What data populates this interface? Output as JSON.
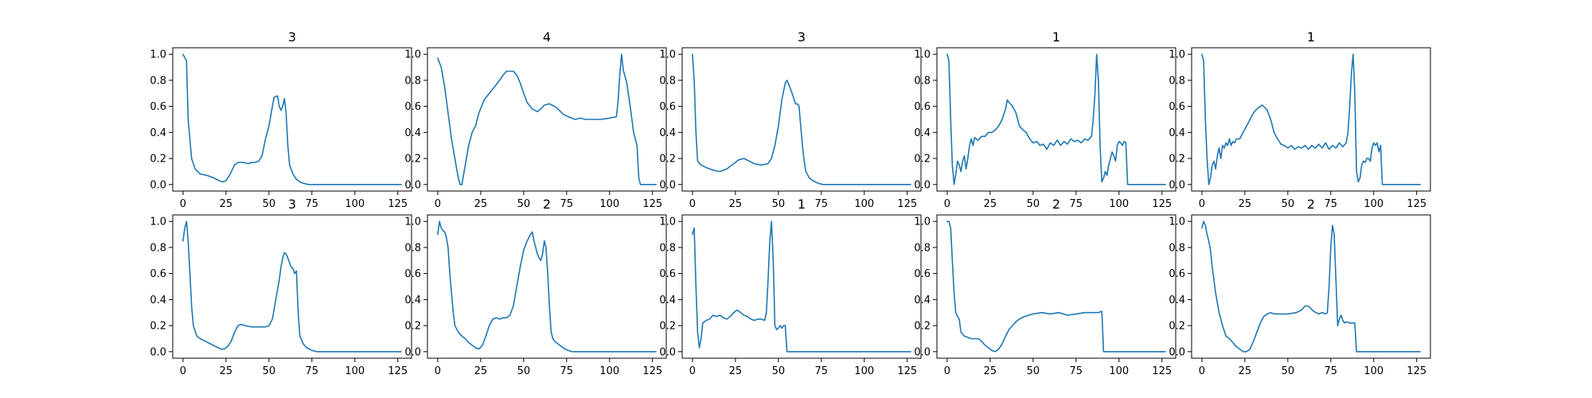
{
  "colors": {
    "series": "#1f77b4"
  },
  "chart_data": [
    {
      "type": "line",
      "title": "3",
      "xlim": [
        -6,
        133
      ],
      "ylim": [
        -0.05,
        1.05
      ],
      "xticks": [
        0,
        25,
        50,
        75,
        100,
        125
      ],
      "yticks": [
        0.0,
        0.2,
        0.4,
        0.6,
        0.8,
        1.0
      ],
      "x": [
        0,
        2,
        3,
        5,
        7,
        10,
        14,
        18,
        21,
        23,
        25,
        27,
        30,
        32,
        35,
        38,
        40,
        42,
        44,
        46,
        48,
        50,
        52,
        53,
        55,
        56,
        57,
        58,
        59,
        60,
        61,
        62,
        64,
        66,
        68,
        70,
        73,
        76,
        80,
        90,
        100,
        110,
        120,
        127
      ],
      "y": [
        1.0,
        0.95,
        0.5,
        0.2,
        0.12,
        0.08,
        0.07,
        0.05,
        0.03,
        0.02,
        0.03,
        0.07,
        0.15,
        0.17,
        0.17,
        0.16,
        0.17,
        0.17,
        0.18,
        0.22,
        0.35,
        0.45,
        0.6,
        0.67,
        0.68,
        0.6,
        0.57,
        0.6,
        0.66,
        0.55,
        0.3,
        0.15,
        0.08,
        0.04,
        0.02,
        0.01,
        0.0,
        0.0,
        0.0,
        0.0,
        0.0,
        0.0,
        0.0,
        0.0
      ]
    },
    {
      "type": "line",
      "title": "4",
      "xlim": [
        -6,
        133
      ],
      "ylim": [
        -0.05,
        1.05
      ],
      "xticks": [
        0,
        25,
        50,
        75,
        100,
        125
      ],
      "yticks": [
        0.0,
        0.2,
        0.4,
        0.6,
        0.8,
        1.0
      ],
      "x": [
        0,
        2,
        4,
        6,
        8,
        10,
        11,
        12,
        13,
        14,
        16,
        18,
        20,
        22,
        24,
        27,
        30,
        33,
        36,
        38,
        40,
        42,
        44,
        46,
        48,
        50,
        52,
        55,
        58,
        60,
        62,
        65,
        68,
        70,
        73,
        76,
        78,
        80,
        83,
        86,
        90,
        95,
        100,
        104,
        105,
        106,
        107,
        108,
        110,
        112,
        114,
        116,
        117,
        118,
        120,
        124,
        127
      ],
      "y": [
        0.97,
        0.9,
        0.75,
        0.55,
        0.35,
        0.2,
        0.12,
        0.05,
        0.0,
        0.0,
        0.15,
        0.3,
        0.4,
        0.45,
        0.55,
        0.65,
        0.7,
        0.75,
        0.8,
        0.84,
        0.87,
        0.87,
        0.87,
        0.84,
        0.78,
        0.7,
        0.63,
        0.58,
        0.56,
        0.58,
        0.61,
        0.62,
        0.6,
        0.58,
        0.54,
        0.52,
        0.51,
        0.5,
        0.51,
        0.5,
        0.5,
        0.5,
        0.51,
        0.52,
        0.65,
        0.85,
        1.0,
        0.88,
        0.78,
        0.6,
        0.4,
        0.3,
        0.05,
        0.0,
        0.0,
        0.0,
        0.0
      ]
    },
    {
      "type": "line",
      "title": "3",
      "xlim": [
        -6,
        133
      ],
      "ylim": [
        -0.05,
        1.05
      ],
      "xticks": [
        0,
        25,
        50,
        75,
        100,
        125
      ],
      "yticks": [
        0.0,
        0.2,
        0.4,
        0.6,
        0.8,
        1.0
      ],
      "x": [
        0,
        1,
        2,
        3,
        5,
        8,
        12,
        16,
        20,
        24,
        27,
        30,
        33,
        36,
        40,
        44,
        46,
        48,
        50,
        52,
        54,
        55,
        56,
        58,
        60,
        61,
        62,
        63,
        64,
        65,
        66,
        68,
        70,
        73,
        76,
        80,
        90,
        100,
        110,
        120,
        127
      ],
      "y": [
        1.0,
        0.8,
        0.4,
        0.18,
        0.15,
        0.13,
        0.11,
        0.1,
        0.12,
        0.16,
        0.19,
        0.2,
        0.18,
        0.16,
        0.15,
        0.16,
        0.2,
        0.3,
        0.45,
        0.65,
        0.78,
        0.8,
        0.77,
        0.7,
        0.62,
        0.62,
        0.6,
        0.45,
        0.3,
        0.18,
        0.1,
        0.05,
        0.03,
        0.01,
        0.0,
        0.0,
        0.0,
        0.0,
        0.0,
        0.0,
        0.0
      ]
    },
    {
      "type": "line",
      "title": "1",
      "xlim": [
        -6,
        133
      ],
      "ylim": [
        -0.05,
        1.05
      ],
      "xticks": [
        0,
        25,
        50,
        75,
        100,
        125
      ],
      "yticks": [
        0.0,
        0.2,
        0.4,
        0.6,
        0.8,
        1.0
      ],
      "x": [
        0,
        1,
        2,
        3,
        4,
        5,
        6,
        7,
        8,
        9,
        10,
        11,
        12,
        13,
        14,
        15,
        16,
        18,
        20,
        22,
        24,
        26,
        28,
        30,
        32,
        34,
        35,
        36,
        38,
        40,
        42,
        44,
        46,
        48,
        50,
        52,
        54,
        56,
        58,
        60,
        62,
        64,
        66,
        68,
        70,
        72,
        74,
        76,
        78,
        80,
        82,
        84,
        85,
        86,
        87,
        88,
        89,
        90,
        91,
        92,
        93,
        94,
        95,
        96,
        97,
        98,
        99,
        100,
        101,
        102,
        103,
        104,
        105,
        106,
        110,
        120,
        127
      ],
      "y": [
        1.0,
        0.95,
        0.5,
        0.15,
        0.0,
        0.08,
        0.18,
        0.15,
        0.1,
        0.18,
        0.22,
        0.12,
        0.2,
        0.3,
        0.35,
        0.3,
        0.36,
        0.34,
        0.37,
        0.37,
        0.4,
        0.4,
        0.42,
        0.45,
        0.5,
        0.58,
        0.65,
        0.63,
        0.6,
        0.55,
        0.45,
        0.42,
        0.4,
        0.35,
        0.32,
        0.33,
        0.3,
        0.31,
        0.27,
        0.32,
        0.3,
        0.34,
        0.3,
        0.33,
        0.31,
        0.35,
        0.33,
        0.34,
        0.32,
        0.35,
        0.34,
        0.37,
        0.5,
        0.7,
        1.0,
        0.8,
        0.3,
        0.02,
        0.05,
        0.1,
        0.07,
        0.15,
        0.2,
        0.25,
        0.22,
        0.18,
        0.3,
        0.33,
        0.32,
        0.3,
        0.33,
        0.32,
        0.0,
        0.0,
        0.0,
        0.0,
        0.0
      ]
    },
    {
      "type": "line",
      "title": "1",
      "xlim": [
        -6,
        133
      ],
      "ylim": [
        -0.05,
        1.05
      ],
      "xticks": [
        0,
        25,
        50,
        75,
        100,
        125
      ],
      "yticks": [
        0.0,
        0.2,
        0.4,
        0.6,
        0.8,
        1.0
      ],
      "x": [
        0,
        1,
        2,
        3,
        4,
        5,
        6,
        7,
        8,
        9,
        10,
        11,
        12,
        13,
        14,
        15,
        16,
        17,
        18,
        19,
        20,
        22,
        24,
        26,
        28,
        30,
        32,
        34,
        35,
        36,
        38,
        40,
        42,
        44,
        46,
        48,
        50,
        52,
        54,
        56,
        58,
        60,
        62,
        64,
        66,
        68,
        70,
        72,
        74,
        76,
        78,
        80,
        82,
        84,
        85,
        86,
        87,
        88,
        89,
        90,
        91,
        92,
        93,
        94,
        95,
        96,
        97,
        98,
        99,
        100,
        101,
        102,
        103,
        104,
        105,
        106,
        110,
        120,
        127
      ],
      "y": [
        1.0,
        0.95,
        0.5,
        0.2,
        0.0,
        0.05,
        0.15,
        0.18,
        0.12,
        0.22,
        0.28,
        0.2,
        0.3,
        0.28,
        0.32,
        0.3,
        0.35,
        0.3,
        0.33,
        0.32,
        0.35,
        0.35,
        0.4,
        0.45,
        0.5,
        0.55,
        0.58,
        0.6,
        0.61,
        0.6,
        0.57,
        0.5,
        0.4,
        0.35,
        0.31,
        0.3,
        0.28,
        0.3,
        0.27,
        0.29,
        0.28,
        0.3,
        0.27,
        0.3,
        0.28,
        0.31,
        0.28,
        0.32,
        0.27,
        0.3,
        0.28,
        0.32,
        0.29,
        0.32,
        0.4,
        0.6,
        0.85,
        1.0,
        0.7,
        0.1,
        0.02,
        0.05,
        0.15,
        0.18,
        0.17,
        0.2,
        0.2,
        0.18,
        0.28,
        0.32,
        0.3,
        0.32,
        0.25,
        0.3,
        0.0,
        0.0,
        0.0,
        0.0,
        0.0
      ]
    },
    {
      "type": "line",
      "title": "3",
      "xlim": [
        -6,
        133
      ],
      "ylim": [
        -0.05,
        1.05
      ],
      "xticks": [
        0,
        25,
        50,
        75,
        100,
        125
      ],
      "yticks": [
        0.0,
        0.2,
        0.4,
        0.6,
        0.8,
        1.0
      ],
      "x": [
        0,
        1,
        2,
        3,
        4,
        5,
        6,
        8,
        10,
        13,
        16,
        19,
        22,
        24,
        26,
        28,
        30,
        32,
        34,
        36,
        40,
        44,
        48,
        50,
        52,
        54,
        56,
        57,
        58,
        59,
        60,
        61,
        62,
        63,
        64,
        65,
        66,
        67,
        68,
        70,
        72,
        75,
        78,
        80,
        90,
        100,
        110,
        120,
        127
      ],
      "y": [
        0.85,
        0.95,
        1.0,
        0.85,
        0.6,
        0.35,
        0.2,
        0.12,
        0.1,
        0.08,
        0.06,
        0.04,
        0.02,
        0.02,
        0.04,
        0.08,
        0.15,
        0.2,
        0.21,
        0.2,
        0.19,
        0.19,
        0.19,
        0.2,
        0.25,
        0.4,
        0.55,
        0.65,
        0.72,
        0.76,
        0.75,
        0.72,
        0.68,
        0.65,
        0.64,
        0.6,
        0.62,
        0.3,
        0.12,
        0.06,
        0.03,
        0.01,
        0.0,
        0.0,
        0.0,
        0.0,
        0.0,
        0.0,
        0.0
      ]
    },
    {
      "type": "line",
      "title": "2",
      "xlim": [
        -6,
        133
      ],
      "ylim": [
        -0.05,
        1.05
      ],
      "xticks": [
        0,
        25,
        50,
        75,
        100,
        125
      ],
      "yticks": [
        0.0,
        0.2,
        0.4,
        0.6,
        0.8,
        1.0
      ],
      "x": [
        0,
        1,
        2,
        3,
        4,
        5,
        6,
        7,
        8,
        9,
        10,
        12,
        14,
        16,
        18,
        20,
        22,
        24,
        26,
        28,
        30,
        32,
        34,
        36,
        38,
        40,
        42,
        44,
        46,
        48,
        50,
        52,
        54,
        55,
        56,
        57,
        58,
        59,
        60,
        61,
        62,
        63,
        64,
        65,
        66,
        67,
        68,
        70,
        72,
        74,
        76,
        78,
        80,
        90,
        100,
        110,
        120,
        127
      ],
      "y": [
        0.9,
        1.0,
        0.95,
        0.93,
        0.92,
        0.88,
        0.8,
        0.6,
        0.45,
        0.3,
        0.2,
        0.15,
        0.12,
        0.1,
        0.07,
        0.05,
        0.03,
        0.02,
        0.05,
        0.12,
        0.2,
        0.25,
        0.26,
        0.25,
        0.26,
        0.26,
        0.28,
        0.35,
        0.5,
        0.65,
        0.78,
        0.85,
        0.9,
        0.92,
        0.85,
        0.8,
        0.75,
        0.72,
        0.7,
        0.75,
        0.85,
        0.8,
        0.6,
        0.35,
        0.15,
        0.1,
        0.08,
        0.06,
        0.04,
        0.02,
        0.01,
        0.0,
        0.0,
        0.0,
        0.0,
        0.0,
        0.0,
        0.0
      ]
    },
    {
      "type": "line",
      "title": "1",
      "xlim": [
        -6,
        133
      ],
      "ylim": [
        -0.05,
        1.05
      ],
      "xticks": [
        0,
        25,
        50,
        75,
        100,
        125
      ],
      "yticks": [
        0.0,
        0.2,
        0.4,
        0.6,
        0.8,
        1.0
      ],
      "x": [
        0,
        1,
        2,
        3,
        4,
        5,
        6,
        8,
        10,
        12,
        14,
        16,
        18,
        20,
        22,
        24,
        26,
        28,
        30,
        32,
        34,
        36,
        38,
        40,
        42,
        43,
        44,
        45,
        46,
        47,
        48,
        49,
        50,
        51,
        52,
        53,
        54,
        55,
        56,
        60,
        70,
        80,
        90,
        100,
        110,
        120,
        127
      ],
      "y": [
        0.9,
        0.95,
        0.5,
        0.15,
        0.03,
        0.1,
        0.22,
        0.24,
        0.25,
        0.28,
        0.27,
        0.28,
        0.26,
        0.25,
        0.27,
        0.3,
        0.32,
        0.3,
        0.28,
        0.27,
        0.25,
        0.24,
        0.25,
        0.25,
        0.24,
        0.3,
        0.55,
        0.85,
        1.0,
        0.7,
        0.2,
        0.17,
        0.18,
        0.2,
        0.18,
        0.2,
        0.2,
        0.0,
        0.0,
        0.0,
        0.0,
        0.0,
        0.0,
        0.0,
        0.0,
        0.0,
        0.0
      ]
    },
    {
      "type": "line",
      "title": "2",
      "xlim": [
        -6,
        133
      ],
      "ylim": [
        -0.05,
        1.05
      ],
      "xticks": [
        0,
        25,
        50,
        75,
        100,
        125
      ],
      "yticks": [
        0.0,
        0.2,
        0.4,
        0.6,
        0.8,
        1.0
      ],
      "x": [
        0,
        1,
        2,
        3,
        4,
        5,
        6,
        7,
        8,
        10,
        12,
        14,
        16,
        18,
        20,
        22,
        24,
        26,
        28,
        30,
        32,
        34,
        36,
        38,
        40,
        42,
        45,
        50,
        55,
        60,
        65,
        70,
        75,
        80,
        85,
        88,
        90,
        91,
        92,
        95,
        100,
        110,
        120,
        127
      ],
      "y": [
        1.0,
        1.0,
        0.95,
        0.7,
        0.45,
        0.3,
        0.27,
        0.25,
        0.15,
        0.12,
        0.11,
        0.1,
        0.1,
        0.1,
        0.08,
        0.05,
        0.03,
        0.01,
        0.0,
        0.02,
        0.06,
        0.12,
        0.17,
        0.2,
        0.23,
        0.25,
        0.27,
        0.29,
        0.3,
        0.29,
        0.3,
        0.28,
        0.29,
        0.3,
        0.3,
        0.3,
        0.31,
        0.0,
        0.0,
        0.0,
        0.0,
        0.0,
        0.0,
        0.0
      ]
    },
    {
      "type": "line",
      "title": "2",
      "xlim": [
        -6,
        133
      ],
      "ylim": [
        -0.05,
        1.05
      ],
      "xticks": [
        0,
        25,
        50,
        75,
        100,
        125
      ],
      "yticks": [
        0.0,
        0.2,
        0.4,
        0.6,
        0.8,
        1.0
      ],
      "x": [
        0,
        1,
        2,
        3,
        4,
        5,
        6,
        8,
        10,
        12,
        14,
        16,
        18,
        20,
        22,
        24,
        26,
        28,
        30,
        32,
        34,
        36,
        38,
        40,
        42,
        45,
        50,
        55,
        58,
        60,
        62,
        65,
        68,
        70,
        72,
        73,
        74,
        75,
        76,
        77,
        78,
        79,
        80,
        81,
        82,
        83,
        84,
        86,
        88,
        89,
        90,
        95,
        100,
        110,
        120,
        127
      ],
      "y": [
        0.95,
        1.0,
        0.97,
        0.9,
        0.85,
        0.78,
        0.65,
        0.45,
        0.3,
        0.2,
        0.12,
        0.1,
        0.07,
        0.04,
        0.02,
        0.0,
        0.0,
        0.02,
        0.08,
        0.15,
        0.22,
        0.27,
        0.29,
        0.3,
        0.29,
        0.29,
        0.29,
        0.3,
        0.32,
        0.35,
        0.35,
        0.31,
        0.29,
        0.3,
        0.29,
        0.3,
        0.5,
        0.8,
        0.97,
        0.9,
        0.55,
        0.2,
        0.25,
        0.28,
        0.24,
        0.22,
        0.23,
        0.22,
        0.22,
        0.22,
        0.0,
        0.0,
        0.0,
        0.0,
        0.0,
        0.0
      ]
    }
  ]
}
